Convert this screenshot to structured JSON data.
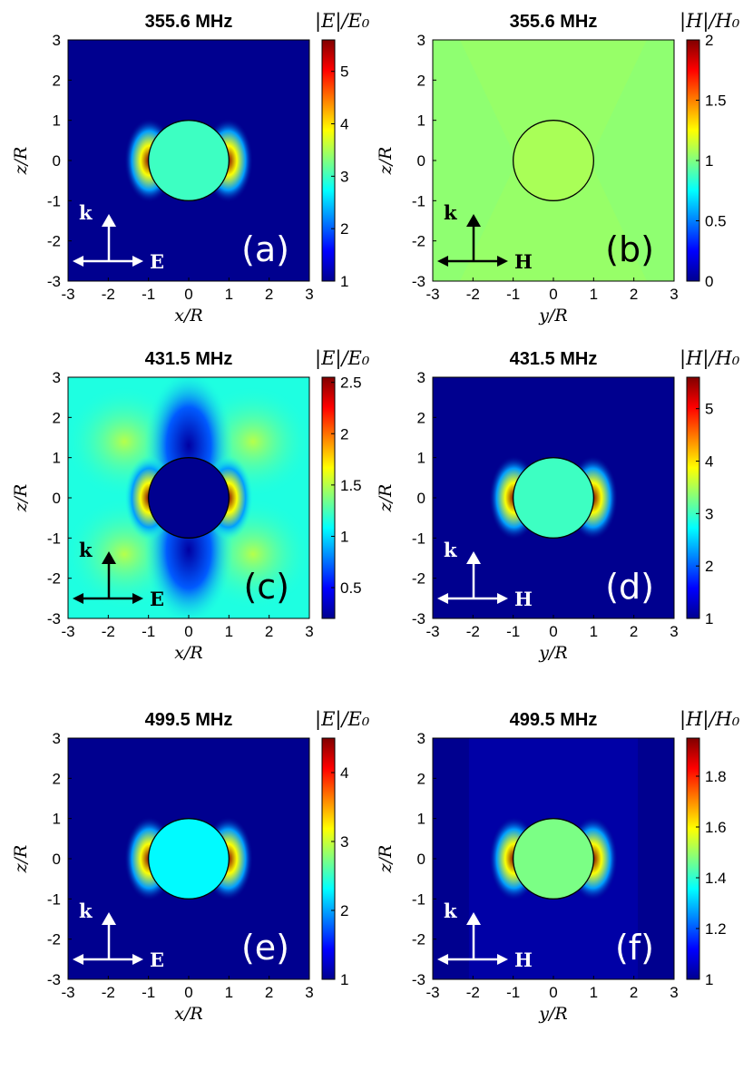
{
  "chart_data": [
    {
      "type": "heatmap",
      "panel": "(a)",
      "title": "355.6 MHz",
      "quantity": "|E|/E₀",
      "xlabel": "x/R",
      "ylabel": "z/R",
      "xlim": [
        -3,
        3
      ],
      "ylim": [
        -3,
        3
      ],
      "xticks": [
        "-3",
        "-2",
        "-1",
        "0",
        "1",
        "2",
        "3"
      ],
      "yticks": [
        "3",
        "2",
        "1",
        "0",
        "-1",
        "-2",
        "-3"
      ],
      "colorbar": {
        "min": 1,
        "max": 5.6,
        "ticks": [
          "5",
          "4",
          "3",
          "2",
          "1"
        ]
      },
      "inside_value": 3.0,
      "background_value": 1.0,
      "k_label": "k",
      "field_label": "E",
      "arrow_color": "#ffffff"
    },
    {
      "type": "heatmap",
      "panel": "(b)",
      "title": "355.6 MHz",
      "quantity": "|H|/H₀",
      "xlabel": "y/R",
      "ylabel": "z/R",
      "xlim": [
        -3,
        3
      ],
      "ylim": [
        -3,
        3
      ],
      "xticks": [
        "-3",
        "-2",
        "-1",
        "0",
        "1",
        "2",
        "3"
      ],
      "yticks": [
        "3",
        "2",
        "1",
        "0",
        "-1",
        "-2",
        "-3"
      ],
      "colorbar": {
        "min": 0,
        "max": 2,
        "ticks": [
          "2",
          "1.5",
          "1",
          "0.5",
          "0"
        ]
      },
      "inside_value": 1.08,
      "background_value": 1.03,
      "k_label": "k",
      "field_label": "H",
      "arrow_color": "#000000"
    },
    {
      "type": "heatmap",
      "panel": "(c)",
      "title": "431.5 MHz",
      "quantity": "|E|/E₀",
      "xlabel": "x/R",
      "ylabel": "z/R",
      "xlim": [
        -3,
        3
      ],
      "ylim": [
        -3,
        3
      ],
      "xticks": [
        "-3",
        "-2",
        "-1",
        "0",
        "1",
        "2",
        "3"
      ],
      "yticks": [
        "3",
        "2",
        "1",
        "0",
        "-1",
        "-2",
        "-3"
      ],
      "colorbar": {
        "min": 0.2,
        "max": 2.55,
        "ticks": [
          "2.5",
          "2",
          "1.5",
          "1",
          "0.5"
        ]
      },
      "inside_value": 0.2,
      "background_value": 1.15,
      "k_label": "k",
      "field_label": "E",
      "arrow_color": "#000000"
    },
    {
      "type": "heatmap",
      "panel": "(d)",
      "title": "431.5 MHz",
      "quantity": "|H|/H₀",
      "xlabel": "y/R",
      "ylabel": "z/R",
      "xlim": [
        -3,
        3
      ],
      "ylim": [
        -3,
        3
      ],
      "xticks": [
        "-3",
        "-2",
        "-1",
        "0",
        "1",
        "2",
        "3"
      ],
      "yticks": [
        "3",
        "2",
        "1",
        "0",
        "-1",
        "-2",
        "-3"
      ],
      "colorbar": {
        "min": 1,
        "max": 5.6,
        "ticks": [
          "5",
          "4",
          "3",
          "2",
          "1"
        ]
      },
      "inside_value": 3.0,
      "background_value": 1.0,
      "k_label": "k",
      "field_label": "H",
      "arrow_color": "#ffffff"
    },
    {
      "type": "heatmap",
      "panel": "(e)",
      "title": "499.5 MHz",
      "quantity": "|E|/E₀",
      "xlabel": "x/R",
      "ylabel": "z/R",
      "xlim": [
        -3,
        3
      ],
      "ylim": [
        -3,
        3
      ],
      "xticks": [
        "-3",
        "-2",
        "-1",
        "0",
        "1",
        "2",
        "3"
      ],
      "yticks": [
        "3",
        "2",
        "1",
        "0",
        "-1",
        "-2",
        "-3"
      ],
      "colorbar": {
        "min": 1,
        "max": 4.5,
        "ticks": [
          "4",
          "3",
          "2",
          "1"
        ]
      },
      "inside_value": 2.3,
      "background_value": 1.0,
      "k_label": "k",
      "field_label": "E",
      "arrow_color": "#ffffff"
    },
    {
      "type": "heatmap",
      "panel": "(f)",
      "title": "499.5 MHz",
      "quantity": "|H|/H₀",
      "xlabel": "y/R",
      "ylabel": "z/R",
      "xlim": [
        -3,
        3
      ],
      "ylim": [
        -3,
        3
      ],
      "xticks": [
        "-3",
        "-2",
        "-1",
        "0",
        "1",
        "2",
        "3"
      ],
      "yticks": [
        "3",
        "2",
        "1",
        "0",
        "-1",
        "-2",
        "-3"
      ],
      "colorbar": {
        "min": 1,
        "max": 1.95,
        "ticks": [
          "1.8",
          "1.6",
          "1.4",
          "1.2",
          "1"
        ]
      },
      "inside_value": 1.47,
      "background_value": 1.0,
      "k_label": "k",
      "field_label": "H",
      "arrow_color": "#ffffff"
    }
  ],
  "colormap": [
    "#00008f",
    "#0000ff",
    "#0080ff",
    "#00ffff",
    "#80ff80",
    "#ffff00",
    "#ff8000",
    "#ff0000",
    "#800000"
  ]
}
